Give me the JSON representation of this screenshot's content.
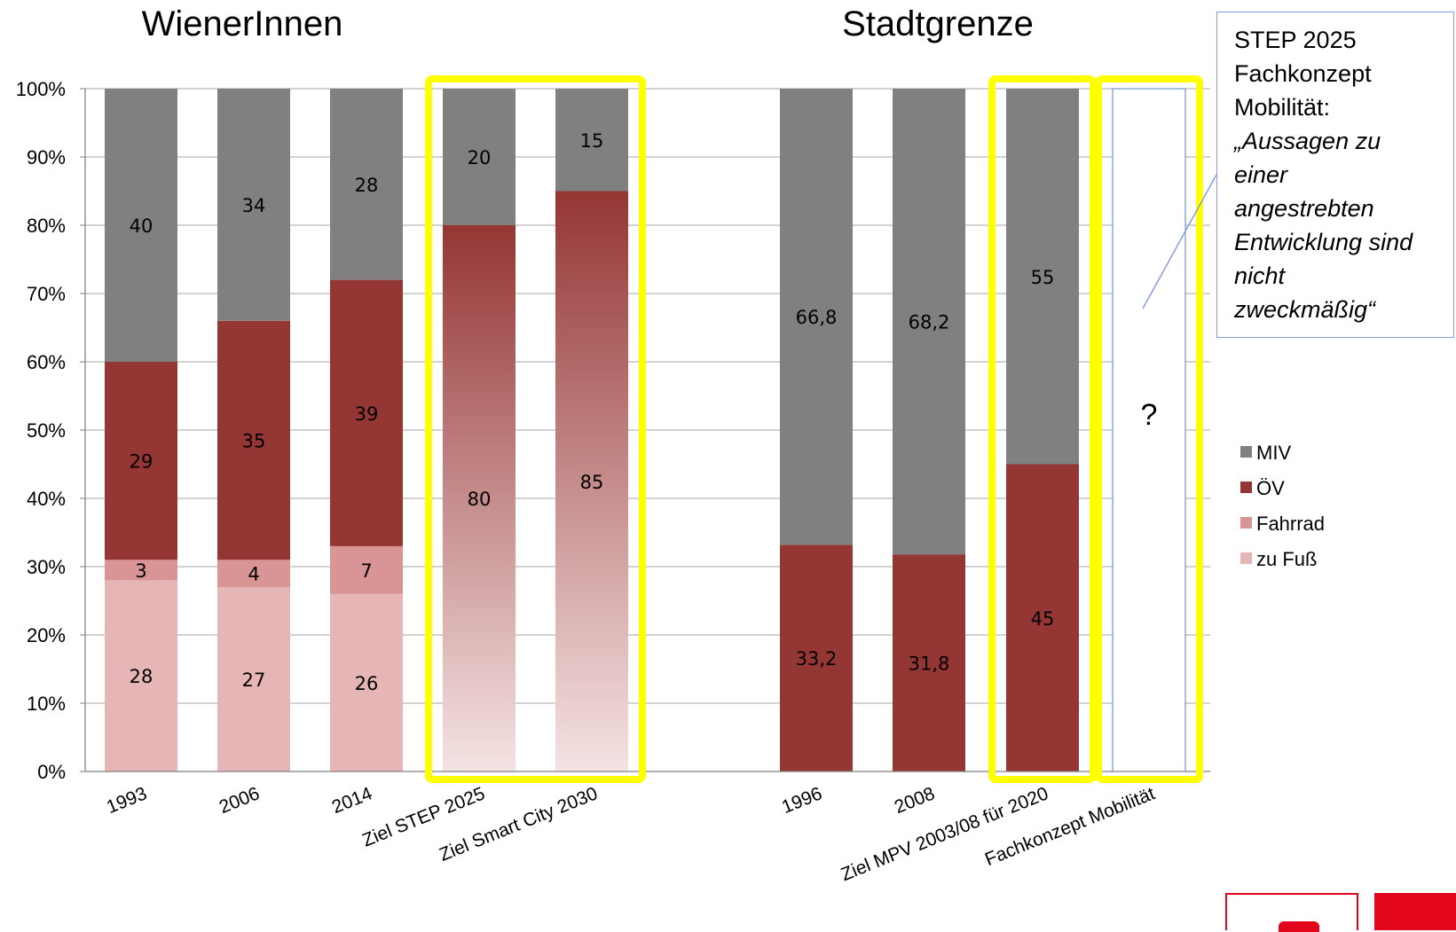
{
  "chart_data": {
    "type": "bar",
    "stacked": true,
    "percent": true,
    "groups": [
      {
        "title": "WienerInnen",
        "categories": [
          "1993",
          "2006",
          "2014",
          "Ziel STEP 2025",
          "Ziel Smart City 2030"
        ]
      },
      {
        "title": "Stadtgrenze",
        "categories": [
          "1996",
          "2008",
          "Ziel MPV 2003/08 für 2020",
          "Fachkonzept Mobilität"
        ]
      }
    ],
    "categories": [
      "1993",
      "2006",
      "2014",
      "Ziel STEP 2025",
      "Ziel Smart City 2030",
      "1996",
      "2008",
      "Ziel MPV 2003/08 für 2020",
      "Fachkonzept Mobilität"
    ],
    "series": [
      {
        "name": "zu Fuß",
        "color": "#e6b6b6",
        "values": [
          28,
          27,
          26,
          null,
          null,
          null,
          null,
          null,
          null
        ],
        "labels": [
          "28",
          "27",
          "26",
          "",
          "",
          "",
          "",
          "",
          ""
        ]
      },
      {
        "name": "Fahrrad",
        "color": "#d99595",
        "values": [
          3,
          4,
          7,
          null,
          null,
          null,
          null,
          null,
          null
        ],
        "labels": [
          "3",
          "4",
          "7",
          "",
          "",
          "",
          "",
          "",
          ""
        ]
      },
      {
        "name": "ÖV",
        "color": "#943634",
        "values": [
          29,
          35,
          39,
          80,
          85,
          33.2,
          31.8,
          45,
          null
        ],
        "labels": [
          "29",
          "35",
          "39",
          "80",
          "85",
          "33,2",
          "31,8",
          "45",
          ""
        ]
      },
      {
        "name": "MIV",
        "color": "#808080",
        "values": [
          40,
          34,
          28,
          20,
          15,
          66.8,
          68.2,
          55,
          null
        ],
        "labels": [
          "40",
          "34",
          "28",
          "20",
          "15",
          "66,8",
          "68,2",
          "55",
          ""
        ]
      }
    ],
    "gradient_bars": [
      "Ziel STEP 2025",
      "Ziel Smart City 2030"
    ],
    "unknown_bar": {
      "category": "Fachkonzept Mobilität",
      "label": "?"
    },
    "highlighted": [
      [
        "Ziel STEP 2025",
        "Ziel Smart City 2030"
      ],
      [
        "Ziel MPV 2003/08 für 2020"
      ],
      [
        "Fachkonzept Mobilität"
      ]
    ],
    "highlight_color": "#ffff00",
    "yticks": [
      "0%",
      "10%",
      "20%",
      "30%",
      "40%",
      "50%",
      "60%",
      "70%",
      "80%",
      "90%",
      "100%"
    ],
    "ylim": [
      0,
      100
    ],
    "grid": true,
    "legend": {
      "position": "right",
      "items": [
        "MIV",
        "ÖV",
        "Fahrrad",
        "zu Fuß"
      ]
    }
  },
  "note": {
    "heading_lines": [
      "STEP 2025",
      "Fachkonzept",
      "Mobilität:"
    ],
    "quote_lines": [
      "„Aussagen zu",
      "einer",
      "angestrebten",
      "Entwicklung sind",
      "nicht",
      "zweckmäßig“"
    ]
  }
}
